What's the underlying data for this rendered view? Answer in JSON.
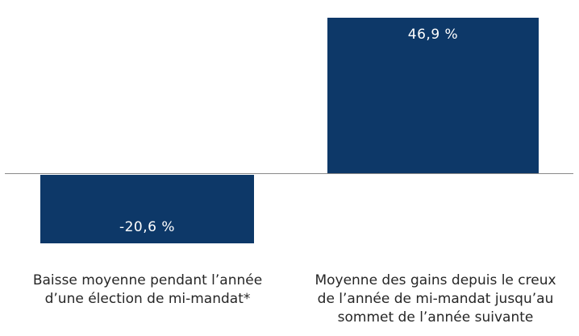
{
  "chart_data": {
    "type": "bar",
    "categories": [
      "Baisse moyenne pendant l’année d’une élection de mi-mandat*",
      "Moyenne des gains depuis le creux de l’année de mi-mandat jusqu’au sommet de l’année suivante"
    ],
    "values": [
      -20.6,
      46.9
    ],
    "value_labels": [
      "-20,6 %",
      "46,9 %"
    ],
    "title": "",
    "xlabel": "",
    "ylabel": "",
    "ylim": [
      -25,
      50
    ],
    "grid": false,
    "legend": "none",
    "bar_color": "#0d3868",
    "axis_line_color": "#8a8a8a",
    "value_label_color": "#ffffff",
    "category_label_color": "#262626"
  },
  "bars": [
    {
      "name": "midterm-year-decline",
      "value": -20.6,
      "value_label": "-20,6 %",
      "category_lines": [
        "Baisse moyenne pendant l’année",
        "d’une élection de mi-mandat*"
      ]
    },
    {
      "name": "trough-to-peak-gain",
      "value": 46.9,
      "value_label": "46,9 %",
      "category_lines": [
        "Moyenne des gains depuis le creux",
        "de l’année de mi-mandat jusqu’au",
        "sommet de l’année suivante"
      ]
    }
  ]
}
